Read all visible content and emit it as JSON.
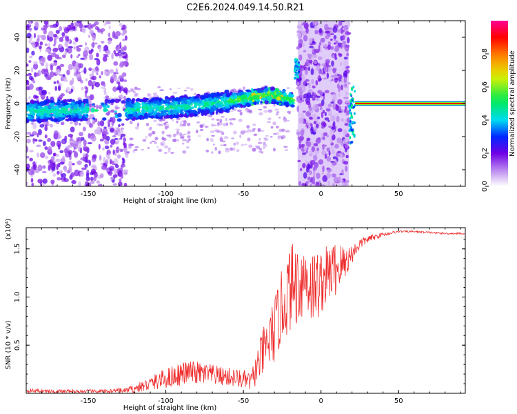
{
  "title": "C2E6.2024.049.14.50.R21",
  "chart_data": [
    {
      "type": "heatmap",
      "xlabel": "Height of straight line (km)",
      "ylabel": "Frequency (Hz)",
      "xlim": [
        -190,
        93
      ],
      "ylim": [
        -50,
        50
      ],
      "xticks": [
        -150,
        -100,
        -50,
        0,
        50
      ],
      "xtick_labels": [
        "-150",
        "-100",
        "-50",
        "0",
        "50"
      ],
      "yticks": [
        -40,
        -20,
        0,
        20,
        40
      ],
      "ytick_labels": [
        "-40",
        "-20",
        "0",
        "20",
        "40"
      ],
      "colorbar": {
        "label": "Normalized spectral amplitude",
        "range": [
          0,
          1
        ],
        "ticks": [
          0.0,
          0.2,
          0.4,
          0.6,
          0.8
        ],
        "tick_labels": [
          "0.0",
          "0.2",
          "0.4",
          "0.6",
          "0.8"
        ]
      },
      "features": {
        "ridge": {
          "x": [
            -190,
            -160,
            -130,
            -110,
            -90,
            -70,
            -50,
            -35,
            -25,
            -18
          ],
          "y": [
            -5,
            -4,
            -4,
            -3,
            -2,
            0,
            3,
            5,
            4,
            2
          ]
        },
        "scatter_bands": [
          [
            -190,
            -125
          ],
          [
            -15,
            18
          ]
        ],
        "steady_tone": {
          "x_range": [
            22,
            93
          ],
          "frequency": 0,
          "amplitude": 0.9
        }
      },
      "grid": false
    },
    {
      "type": "line",
      "xlabel": "Height of straight line (km)",
      "ylabel": "SNR (10 * v/v)",
      "y_multiplier": "(x10⁴)",
      "xlim": [
        -190,
        93
      ],
      "ylim": [
        0,
        1.72
      ],
      "xticks": [
        -150,
        -100,
        -50,
        0,
        50
      ],
      "xtick_labels": [
        "-150",
        "-100",
        "-50",
        "0",
        "50"
      ],
      "yticks": [
        0.5,
        1.0,
        1.5
      ],
      "ytick_labels": [
        "0.5",
        "1.0",
        "1.5"
      ],
      "series": [
        {
          "color": "#ee2a2a",
          "x": [
            -190,
            -175,
            -160,
            -140,
            -125,
            -115,
            -105,
            -95,
            -85,
            -75,
            -65,
            -55,
            -45,
            -38,
            -30,
            -25,
            -20,
            -15,
            -10,
            -5,
            0,
            5,
            10,
            15,
            20,
            25,
            30,
            40,
            50,
            60,
            70,
            80,
            93
          ],
          "y": [
            0.03,
            0.02,
            0.02,
            0.02,
            0.03,
            0.07,
            0.13,
            0.18,
            0.22,
            0.2,
            0.18,
            0.16,
            0.12,
            0.4,
            0.65,
            0.9,
            1.1,
            1.15,
            1.2,
            1.1,
            1.15,
            1.25,
            1.3,
            1.35,
            1.45,
            1.55,
            1.6,
            1.65,
            1.68,
            1.68,
            1.67,
            1.66,
            1.66
          ],
          "noise_amplitude": [
            0.02,
            0.02,
            0.02,
            0.02,
            0.03,
            0.06,
            0.09,
            0.12,
            0.12,
            0.12,
            0.1,
            0.1,
            0.1,
            0.25,
            0.35,
            0.4,
            0.45,
            0.45,
            0.4,
            0.4,
            0.35,
            0.3,
            0.3,
            0.2,
            0.1,
            0.06,
            0.04,
            0.02,
            0.01,
            0.01,
            0.01,
            0.01,
            0.01
          ]
        }
      ],
      "grid": false
    }
  ]
}
